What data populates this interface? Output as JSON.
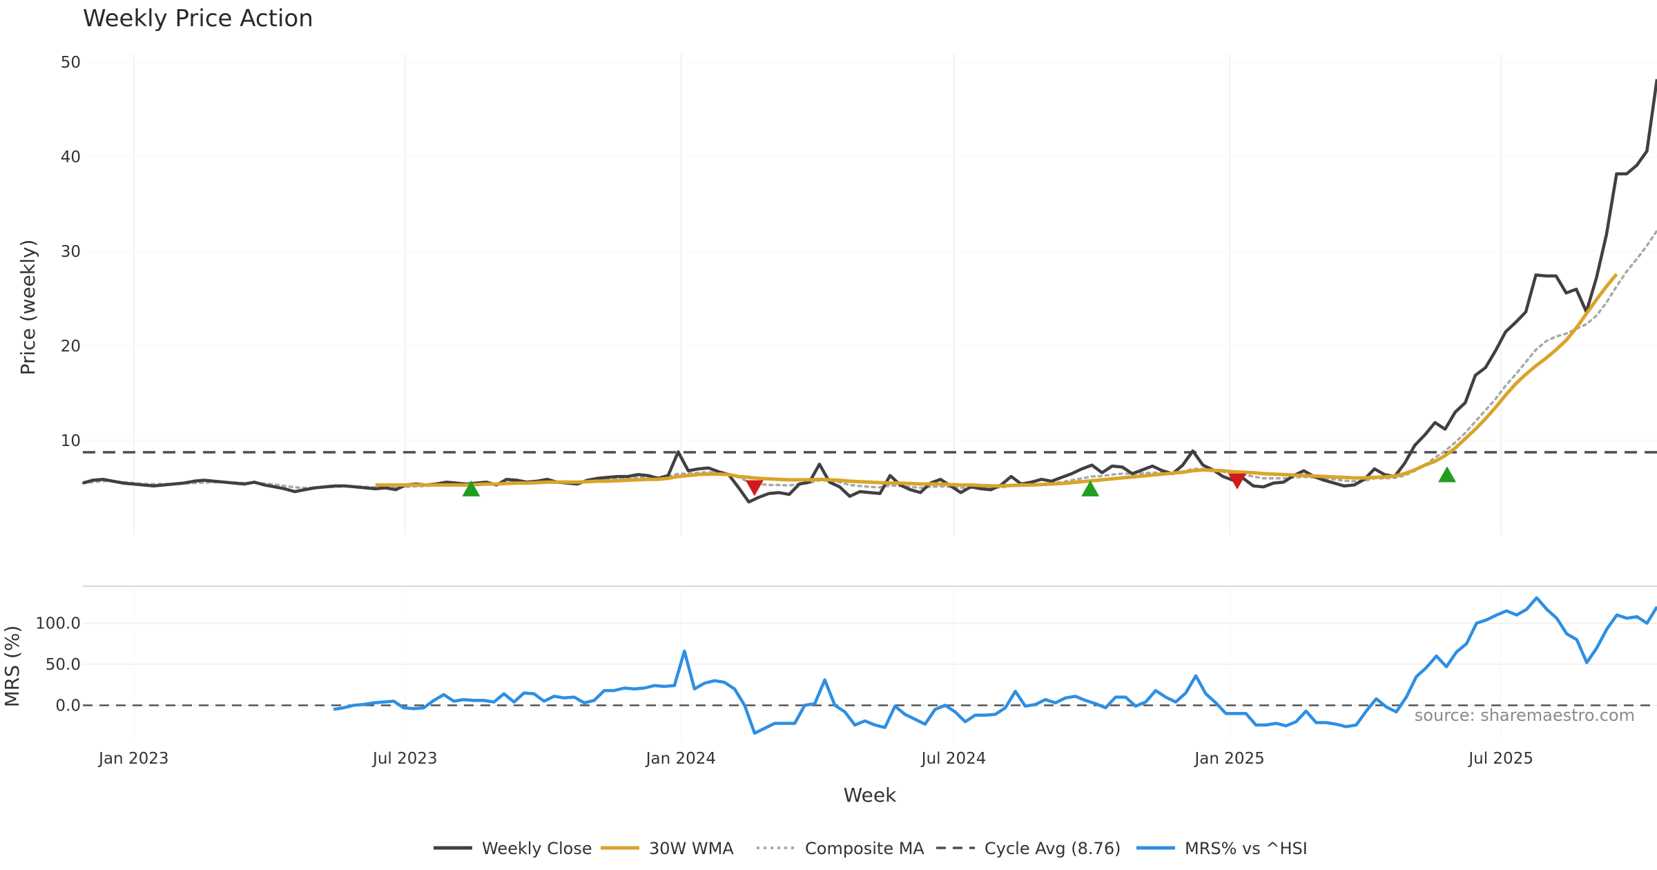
{
  "chart_data": {
    "type": "line",
    "title": "Weekly Price Action",
    "x_title": "Week",
    "x_ticks": [
      "Jan 2023",
      "Jul 2023",
      "Jan 2024",
      "Jul 2024",
      "Jan 2025",
      "Jul 2025"
    ],
    "x_range": [
      "2022-11-28",
      "2025-10-13"
    ],
    "price_panel": {
      "ylabel": "Price (weekly)",
      "y_ticks": [
        "10",
        "20",
        "30",
        "40",
        "50"
      ],
      "ylim": [
        0,
        50
      ],
      "cycle_avg": 8.76,
      "weekly_close": [
        5.5,
        5.8,
        5.9,
        5.7,
        5.5,
        5.4,
        5.3,
        5.2,
        5.3,
        5.4,
        5.5,
        5.7,
        5.8,
        5.7,
        5.6,
        5.5,
        5.4,
        5.6,
        5.3,
        5.1,
        4.9,
        4.6,
        4.8,
        5.0,
        5.1,
        5.2,
        5.2,
        5.1,
        5.0,
        4.9,
        5.0,
        4.8,
        5.3,
        5.4,
        5.3,
        5.4,
        5.6,
        5.5,
        5.4,
        5.5,
        5.6,
        5.3,
        5.9,
        5.8,
        5.6,
        5.7,
        5.9,
        5.6,
        5.5,
        5.4,
        5.8,
        6.0,
        6.1,
        6.2,
        6.2,
        6.4,
        6.3,
        6.0,
        6.3,
        8.8,
        6.8,
        7.0,
        7.1,
        6.7,
        6.4,
        5.0,
        3.5,
        4.0,
        4.4,
        4.5,
        4.3,
        5.4,
        5.6,
        7.5,
        5.6,
        5.1,
        4.1,
        4.6,
        4.5,
        4.4,
        6.3,
        5.3,
        4.8,
        4.5,
        5.5,
        5.9,
        5.2,
        4.5,
        5.1,
        4.9,
        4.8,
        5.3,
        6.2,
        5.4,
        5.6,
        5.9,
        5.7,
        6.1,
        6.5,
        7.0,
        7.4,
        6.6,
        7.3,
        7.2,
        6.5,
        6.9,
        7.3,
        6.8,
        6.5,
        7.4,
        8.9,
        7.4,
        6.9,
        6.2,
        5.8,
        6.0,
        5.2,
        5.1,
        5.5,
        5.6,
        6.3,
        6.8,
        6.2,
        5.8,
        5.5,
        5.2,
        5.3,
        5.9,
        7.0,
        6.4,
        6.2,
        7.6,
        9.5,
        10.6,
        11.9,
        11.2,
        13.0,
        14.0,
        16.9,
        17.7,
        19.5,
        21.5,
        22.5,
        23.6,
        27.5,
        27.4,
        27.4,
        25.6,
        26.0,
        23.6,
        27.2,
        31.8,
        38.2,
        38.2,
        39.1,
        40.6,
        48.2
      ],
      "wma_30w": [
        null,
        null,
        null,
        null,
        null,
        null,
        null,
        null,
        null,
        null,
        null,
        null,
        null,
        null,
        null,
        null,
        null,
        null,
        null,
        null,
        null,
        null,
        null,
        null,
        null,
        null,
        null,
        null,
        null,
        5.3,
        5.3,
        5.3,
        5.3,
        5.3,
        5.3,
        5.3,
        5.3,
        5.3,
        5.3,
        5.35,
        5.4,
        5.4,
        5.45,
        5.5,
        5.5,
        5.55,
        5.6,
        5.6,
        5.6,
        5.6,
        5.65,
        5.7,
        5.7,
        5.75,
        5.8,
        5.85,
        5.9,
        5.9,
        6.0,
        6.2,
        6.3,
        6.4,
        6.45,
        6.45,
        6.4,
        6.2,
        6.1,
        6.0,
        5.95,
        5.9,
        5.85,
        5.85,
        5.85,
        5.9,
        5.85,
        5.8,
        5.7,
        5.65,
        5.6,
        5.55,
        5.5,
        5.5,
        5.45,
        5.4,
        5.4,
        5.4,
        5.35,
        5.3,
        5.3,
        5.25,
        5.2,
        5.2,
        5.25,
        5.3,
        5.3,
        5.35,
        5.4,
        5.45,
        5.55,
        5.65,
        5.75,
        5.85,
        5.95,
        6.05,
        6.15,
        6.25,
        6.35,
        6.45,
        6.55,
        6.65,
        6.8,
        6.9,
        6.85,
        6.8,
        6.7,
        6.65,
        6.6,
        6.5,
        6.45,
        6.4,
        6.35,
        6.3,
        6.25,
        6.2,
        6.15,
        6.1,
        6.05,
        6.05,
        6.1,
        6.15,
        6.25,
        6.5,
        6.9,
        7.4,
        7.8,
        8.4,
        9.2,
        10.2,
        11.2,
        12.3,
        13.5,
        14.8,
        16.0,
        17.0,
        17.9,
        18.7,
        19.6,
        20.6,
        21.9,
        23.4,
        24.9,
        26.3,
        27.6
      ],
      "composite_ma": [
        5.5,
        5.6,
        5.7,
        5.7,
        5.6,
        5.5,
        5.4,
        5.4,
        5.4,
        5.4,
        5.45,
        5.5,
        5.55,
        5.6,
        5.6,
        5.55,
        5.5,
        5.5,
        5.45,
        5.35,
        5.2,
        5.05,
        5.0,
        5.0,
        5.05,
        5.1,
        5.15,
        5.15,
        5.1,
        5.05,
        5.0,
        5.0,
        5.1,
        5.15,
        5.2,
        5.3,
        5.35,
        5.4,
        5.4,
        5.45,
        5.5,
        5.45,
        5.55,
        5.6,
        5.6,
        5.65,
        5.7,
        5.65,
        5.65,
        5.6,
        5.7,
        5.8,
        5.9,
        5.95,
        6.0,
        6.1,
        6.15,
        6.1,
        6.2,
        6.5,
        6.5,
        6.6,
        6.65,
        6.6,
        6.5,
        6.1,
        5.6,
        5.4,
        5.3,
        5.3,
        5.25,
        5.4,
        5.5,
        5.8,
        5.75,
        5.6,
        5.3,
        5.2,
        5.1,
        5.05,
        5.25,
        5.2,
        5.1,
        5.0,
        5.1,
        5.15,
        5.1,
        5.0,
        5.0,
        5.0,
        5.0,
        5.05,
        5.2,
        5.2,
        5.3,
        5.4,
        5.5,
        5.6,
        5.8,
        6.0,
        6.2,
        6.25,
        6.4,
        6.5,
        6.5,
        6.55,
        6.6,
        6.6,
        6.6,
        6.7,
        7.0,
        7.0,
        6.9,
        6.7,
        6.5,
        6.4,
        6.2,
        6.0,
        6.0,
        6.0,
        6.1,
        6.15,
        6.1,
        6.0,
        5.9,
        5.75,
        5.7,
        5.75,
        6.0,
        6.0,
        6.05,
        6.3,
        6.8,
        7.4,
        8.2,
        8.9,
        9.8,
        10.8,
        12.0,
        13.2,
        14.4,
        15.8,
        17.0,
        18.3,
        19.6,
        20.5,
        21.0,
        21.3,
        21.8,
        22.3,
        23.2,
        24.6,
        26.3,
        27.9,
        29.2,
        30.6,
        32.2
      ],
      "signals": [
        {
          "type": "buy",
          "date": "2023-08-14",
          "price": 4.9
        },
        {
          "type": "sell",
          "date": "2024-02-19",
          "price": 5.0
        },
        {
          "type": "buy",
          "date": "2024-09-30",
          "price": 4.9
        },
        {
          "type": "sell",
          "date": "2025-01-06",
          "price": 5.7
        },
        {
          "type": "buy",
          "date": "2025-05-26",
          "price": 6.4
        }
      ]
    },
    "mrs_panel": {
      "ylabel": "MRS (%)",
      "y_ticks": [
        "0.0",
        "50.0",
        "100.0"
      ],
      "ylim": [
        -45,
        140
      ],
      "mrs_values": [
        null,
        null,
        null,
        null,
        null,
        null,
        null,
        null,
        null,
        null,
        null,
        null,
        null,
        null,
        null,
        null,
        null,
        null,
        null,
        null,
        null,
        null,
        null,
        null,
        null,
        -5,
        -3,
        0,
        1,
        3,
        4,
        5,
        -3,
        -4,
        -3,
        6,
        13,
        5,
        7,
        6,
        6,
        4,
        14,
        4,
        15,
        14,
        5,
        11,
        9,
        10,
        3,
        6,
        18,
        18,
        21,
        20,
        21,
        24,
        23,
        24,
        66,
        20,
        27,
        30,
        28,
        20,
        0,
        -34,
        -28,
        -22,
        -22,
        -22,
        0,
        2,
        31,
        0,
        -8,
        -24,
        -19,
        -24,
        -27,
        -1,
        -11,
        -17,
        -23,
        -5,
        0,
        -8,
        -20,
        -12,
        -12,
        -11,
        -3,
        17,
        -1,
        1,
        7,
        3,
        9,
        11,
        6,
        2,
        -3,
        10,
        10,
        -1,
        4,
        18,
        10,
        4,
        15,
        36,
        14,
        3,
        -10,
        -10,
        -10,
        -24,
        -24,
        -22,
        -25,
        -20,
        -7,
        -21,
        -21,
        -23,
        -26,
        -24,
        -7,
        8,
        -2,
        -8,
        10,
        35,
        46,
        60,
        47,
        65,
        75,
        100,
        104,
        110,
        115,
        110,
        117,
        131,
        117,
        106,
        87,
        80,
        52,
        70,
        93,
        110,
        106,
        108,
        100,
        120
      ],
      "source_note": "source: sharemaestro.com"
    },
    "legend": [
      "Weekly Close",
      "30W WMA",
      "Composite MA",
      "Cycle Avg (8.76)",
      "MRS% vs ^HSI"
    ],
    "colors": {
      "weekly_close": "#404040",
      "wma_30w": "#d9a429",
      "composite_ma": "#a9a9a9",
      "cycle_avg": "#4d4d4d",
      "mrs": "#2d8fe3",
      "buy": "#1f9e1f",
      "sell": "#d11b1b",
      "grid": "#eeeeee",
      "zero_line": "#555555",
      "separator": "#c8c8c8"
    }
  }
}
